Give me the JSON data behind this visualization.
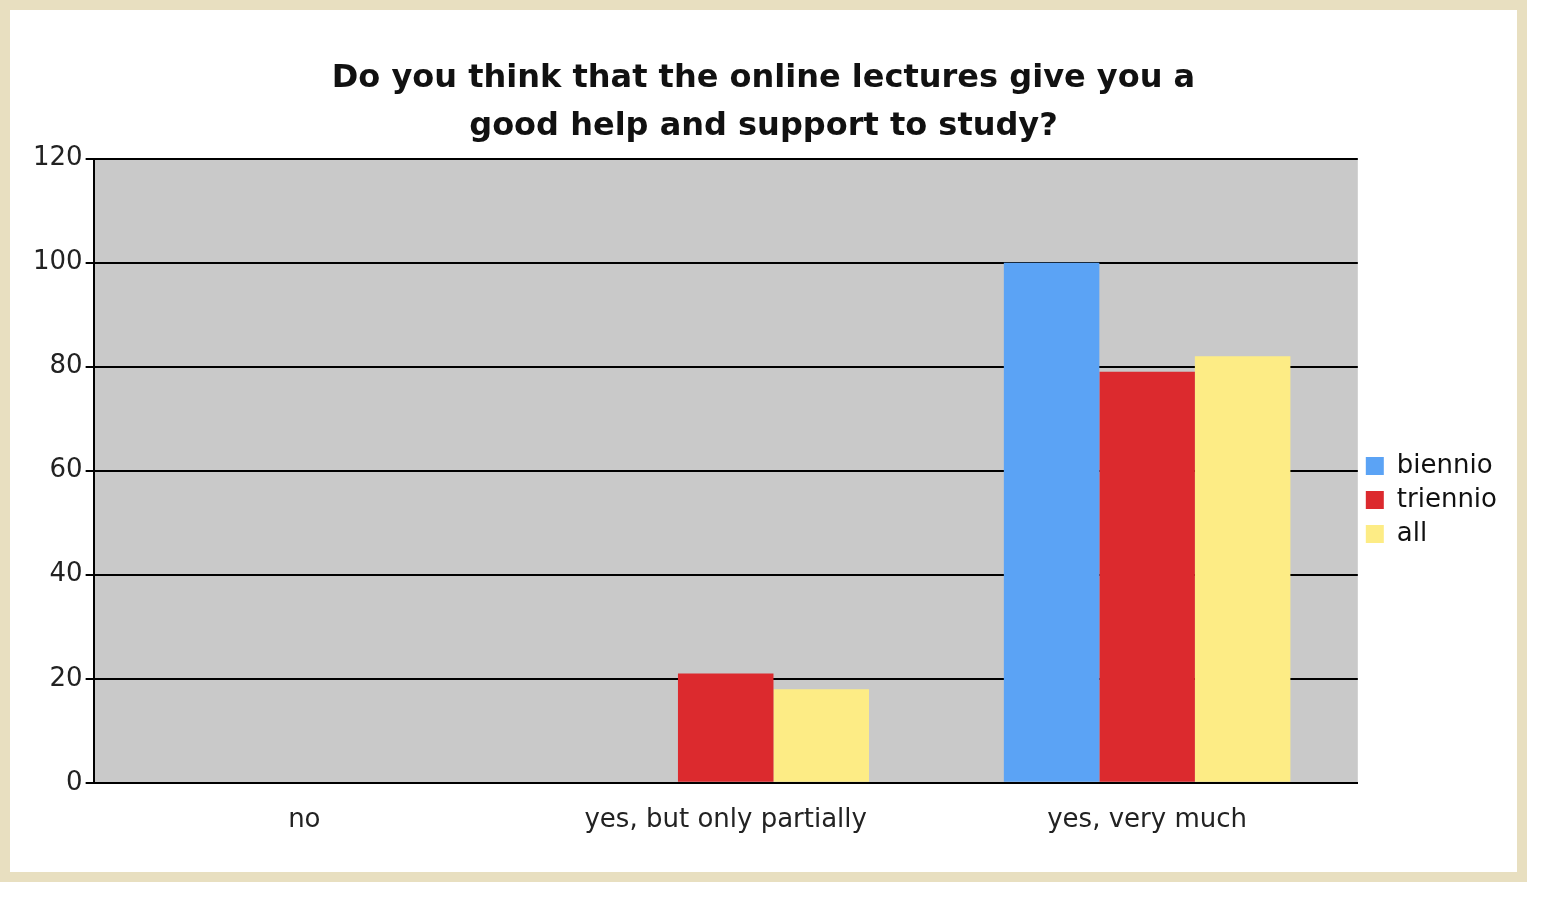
{
  "chart_data": {
    "type": "bar",
    "title": "Do you think that the online lectures give you a good help and support to study?",
    "categories": [
      "no",
      "yes, but only partially",
      "yes, very much"
    ],
    "series": [
      {
        "name": "biennio",
        "color": "#5ba3f5",
        "values": [
          0,
          0,
          100
        ]
      },
      {
        "name": "triennio",
        "color": "#dc2a2e",
        "values": [
          0,
          21,
          79
        ]
      },
      {
        "name": "all",
        "color": "#fdec85",
        "values": [
          0,
          18,
          82
        ]
      }
    ],
    "ylim": [
      0,
      120
    ],
    "yticks": [
      0,
      20,
      40,
      60,
      80,
      100,
      120
    ],
    "grid": "y",
    "legend": "right"
  }
}
